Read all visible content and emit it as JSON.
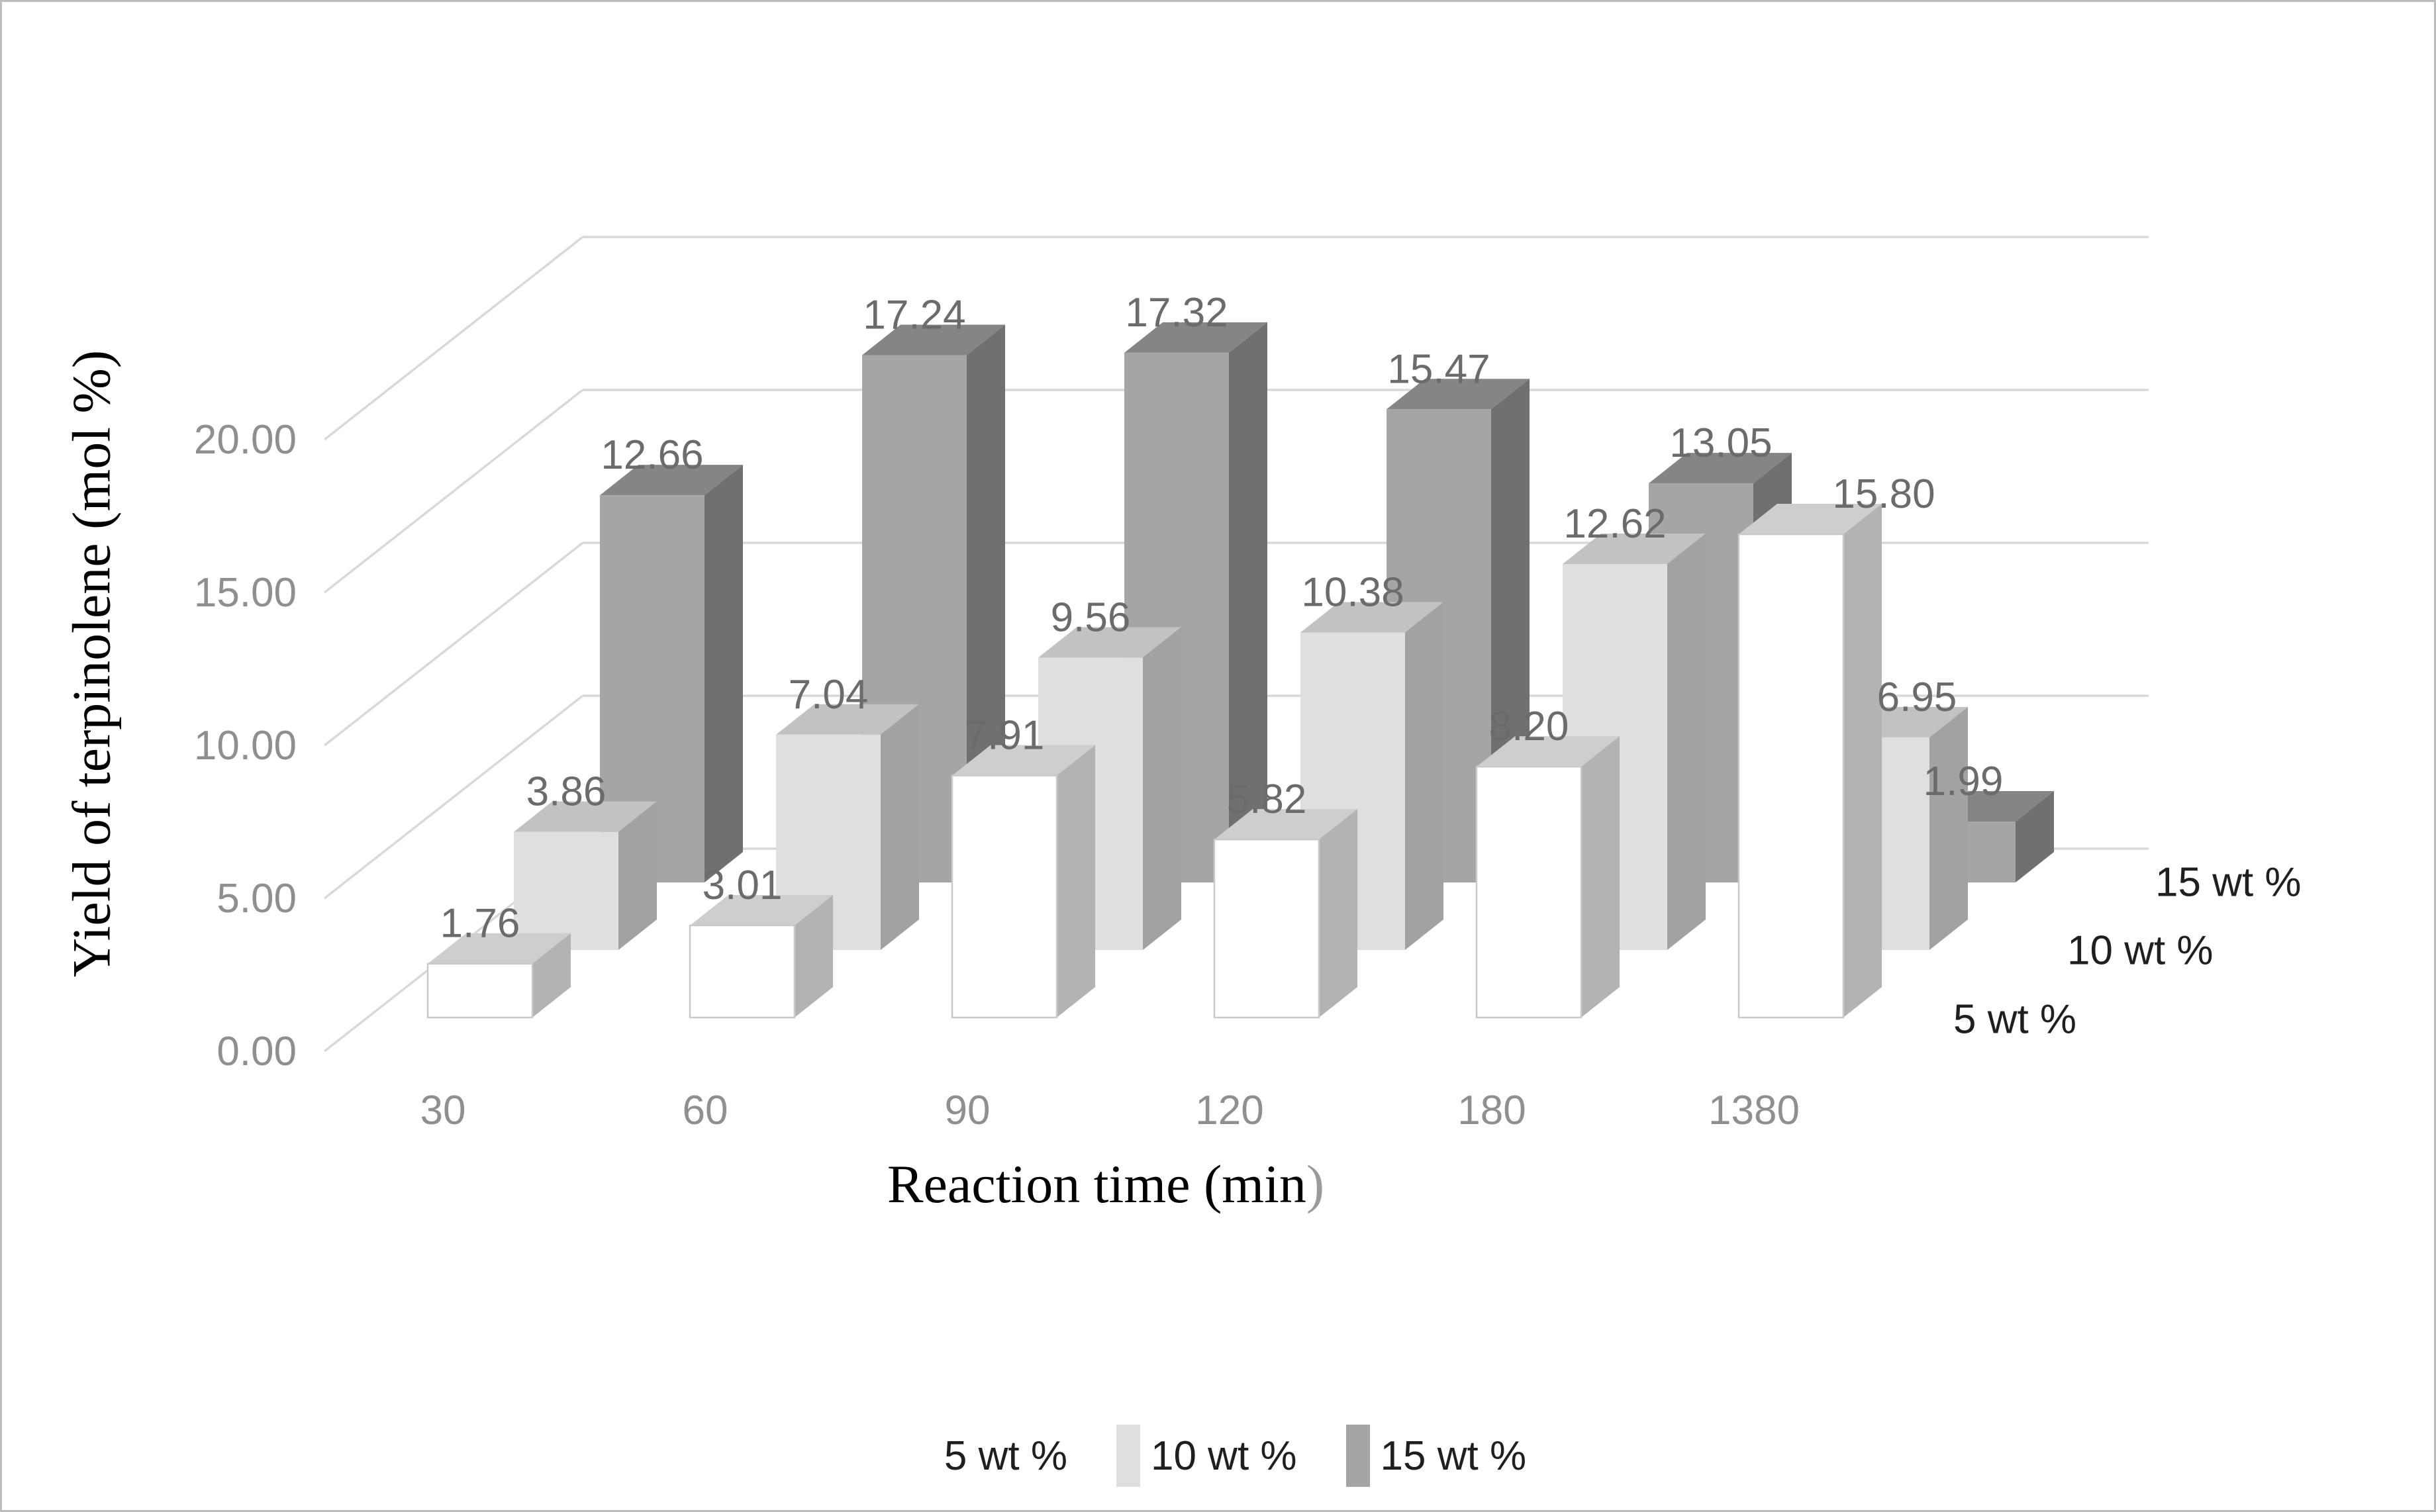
{
  "chart_data": {
    "type": "bar",
    "variant": "3d-column",
    "title": "",
    "categories": [
      "30",
      "60",
      "90",
      "120",
      "180",
      "1380"
    ],
    "series": [
      {
        "name": "5 wt %",
        "values": [
          1.76,
          3.01,
          7.91,
          5.82,
          8.2,
          15.8
        ],
        "color_front": "#ffffff",
        "color_top": "#cecece",
        "color_side": "#b3b3b3",
        "edge": "#c9c9c9"
      },
      {
        "name": "10 wt %",
        "values": [
          3.86,
          7.04,
          9.56,
          10.38,
          12.62,
          6.95
        ],
        "color_front": "#dfdfdf",
        "color_top": "#c2c2c2",
        "color_side": "#a2a2a2",
        "edge": "none"
      },
      {
        "name": "15 wt %",
        "values": [
          12.66,
          17.24,
          17.32,
          15.47,
          13.05,
          1.99
        ],
        "color_front": "#a5a5a5",
        "color_top": "#858585",
        "color_side": "#707070",
        "edge": "none"
      }
    ],
    "value_labels": [
      [
        "1.76",
        "3.01",
        "7.91",
        "5.82",
        "8.20",
        "15.80"
      ],
      [
        "3.86",
        "7.04",
        "9.56",
        "10.38",
        "12.62",
        "6.95"
      ],
      [
        "12.66",
        "17.24",
        "17.32",
        "15.47",
        "13.05",
        "1.99"
      ]
    ],
    "xlabel": "Reaction time (min)",
    "ylabel": "Yield of terpinolene (mol %)",
    "y_axis": {
      "ticks": [
        "0.00",
        "5.00",
        "10.00",
        "15.00",
        "20.00"
      ],
      "tick_values": [
        0,
        5,
        10,
        15,
        20
      ],
      "min": 0,
      "max": 20
    },
    "depth_axis_labels": [
      "5 wt %",
      "10 wt %",
      "15 wt %"
    ],
    "legend": [
      "5 wt %",
      "10 wt %",
      "15 wt %"
    ],
    "legend_position": "bottom",
    "grid": true,
    "colors": {
      "gridline": "#d9d9d9",
      "tick_label": "#8f8f8f",
      "value_label": "#6b6b6b",
      "axis_title": "#000000",
      "frame_border": "#bdbdbd",
      "background": "#ffffff"
    }
  }
}
